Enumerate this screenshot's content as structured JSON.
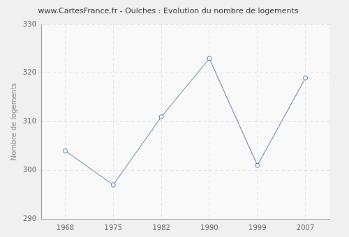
{
  "chart_data": {
    "type": "line",
    "title": "www.CartesFrance.fr - Oulches : Evolution du nombre de logements",
    "y_label": "Nombre de logements",
    "categories": [
      "1968",
      "1975",
      "1982",
      "1990",
      "1999",
      "2007"
    ],
    "values": [
      304,
      297,
      311,
      323,
      301,
      319
    ],
    "color": "#4a72a6",
    "marker": "circle",
    "line_style": "solid",
    "ylim": [
      290,
      330
    ],
    "yticks": [
      290,
      300,
      310,
      320,
      330
    ],
    "grid": true
  }
}
